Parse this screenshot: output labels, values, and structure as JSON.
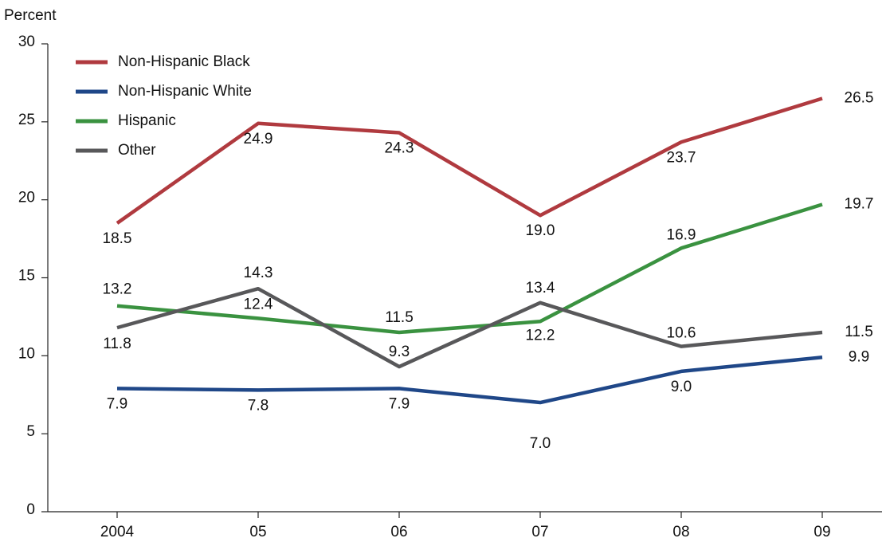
{
  "chart_data": {
    "type": "line",
    "y_label": "Percent",
    "categories": [
      "2004",
      "05",
      "06",
      "07",
      "08",
      "09"
    ],
    "ylim": [
      0,
      30
    ],
    "yticks": [
      0,
      5,
      10,
      15,
      20,
      25,
      30
    ],
    "grid": false,
    "legend": "top-left",
    "series": [
      {
        "name": "Non-Hispanic Black",
        "color": "#b03a3f",
        "values": [
          18.5,
          24.9,
          24.3,
          19.0,
          23.7,
          26.5
        ],
        "value_labels": [
          "18.5",
          "24.9",
          "24.3",
          "19.0",
          "23.7",
          "26.5"
        ]
      },
      {
        "name": "Non-Hispanic White",
        "color": "#1f4788",
        "values": [
          7.9,
          7.8,
          7.9,
          7.0,
          9.0,
          9.9
        ],
        "value_labels": [
          "7.9",
          "7.8",
          "7.9",
          "7.0",
          "9.0",
          "9.9"
        ]
      },
      {
        "name": "Hispanic",
        "color": "#3a9240",
        "values": [
          13.2,
          12.4,
          11.5,
          12.2,
          16.9,
          19.7
        ],
        "value_labels": [
          "13.2",
          "12.4",
          "11.5",
          "12.2",
          "16.9",
          "19.7"
        ]
      },
      {
        "name": "Other",
        "color": "#58585a",
        "values": [
          11.8,
          14.3,
          9.3,
          13.4,
          10.6,
          11.5
        ],
        "value_labels": [
          "11.8",
          "14.3",
          "9.3",
          "13.4",
          "10.6",
          "11.5"
        ]
      }
    ]
  }
}
